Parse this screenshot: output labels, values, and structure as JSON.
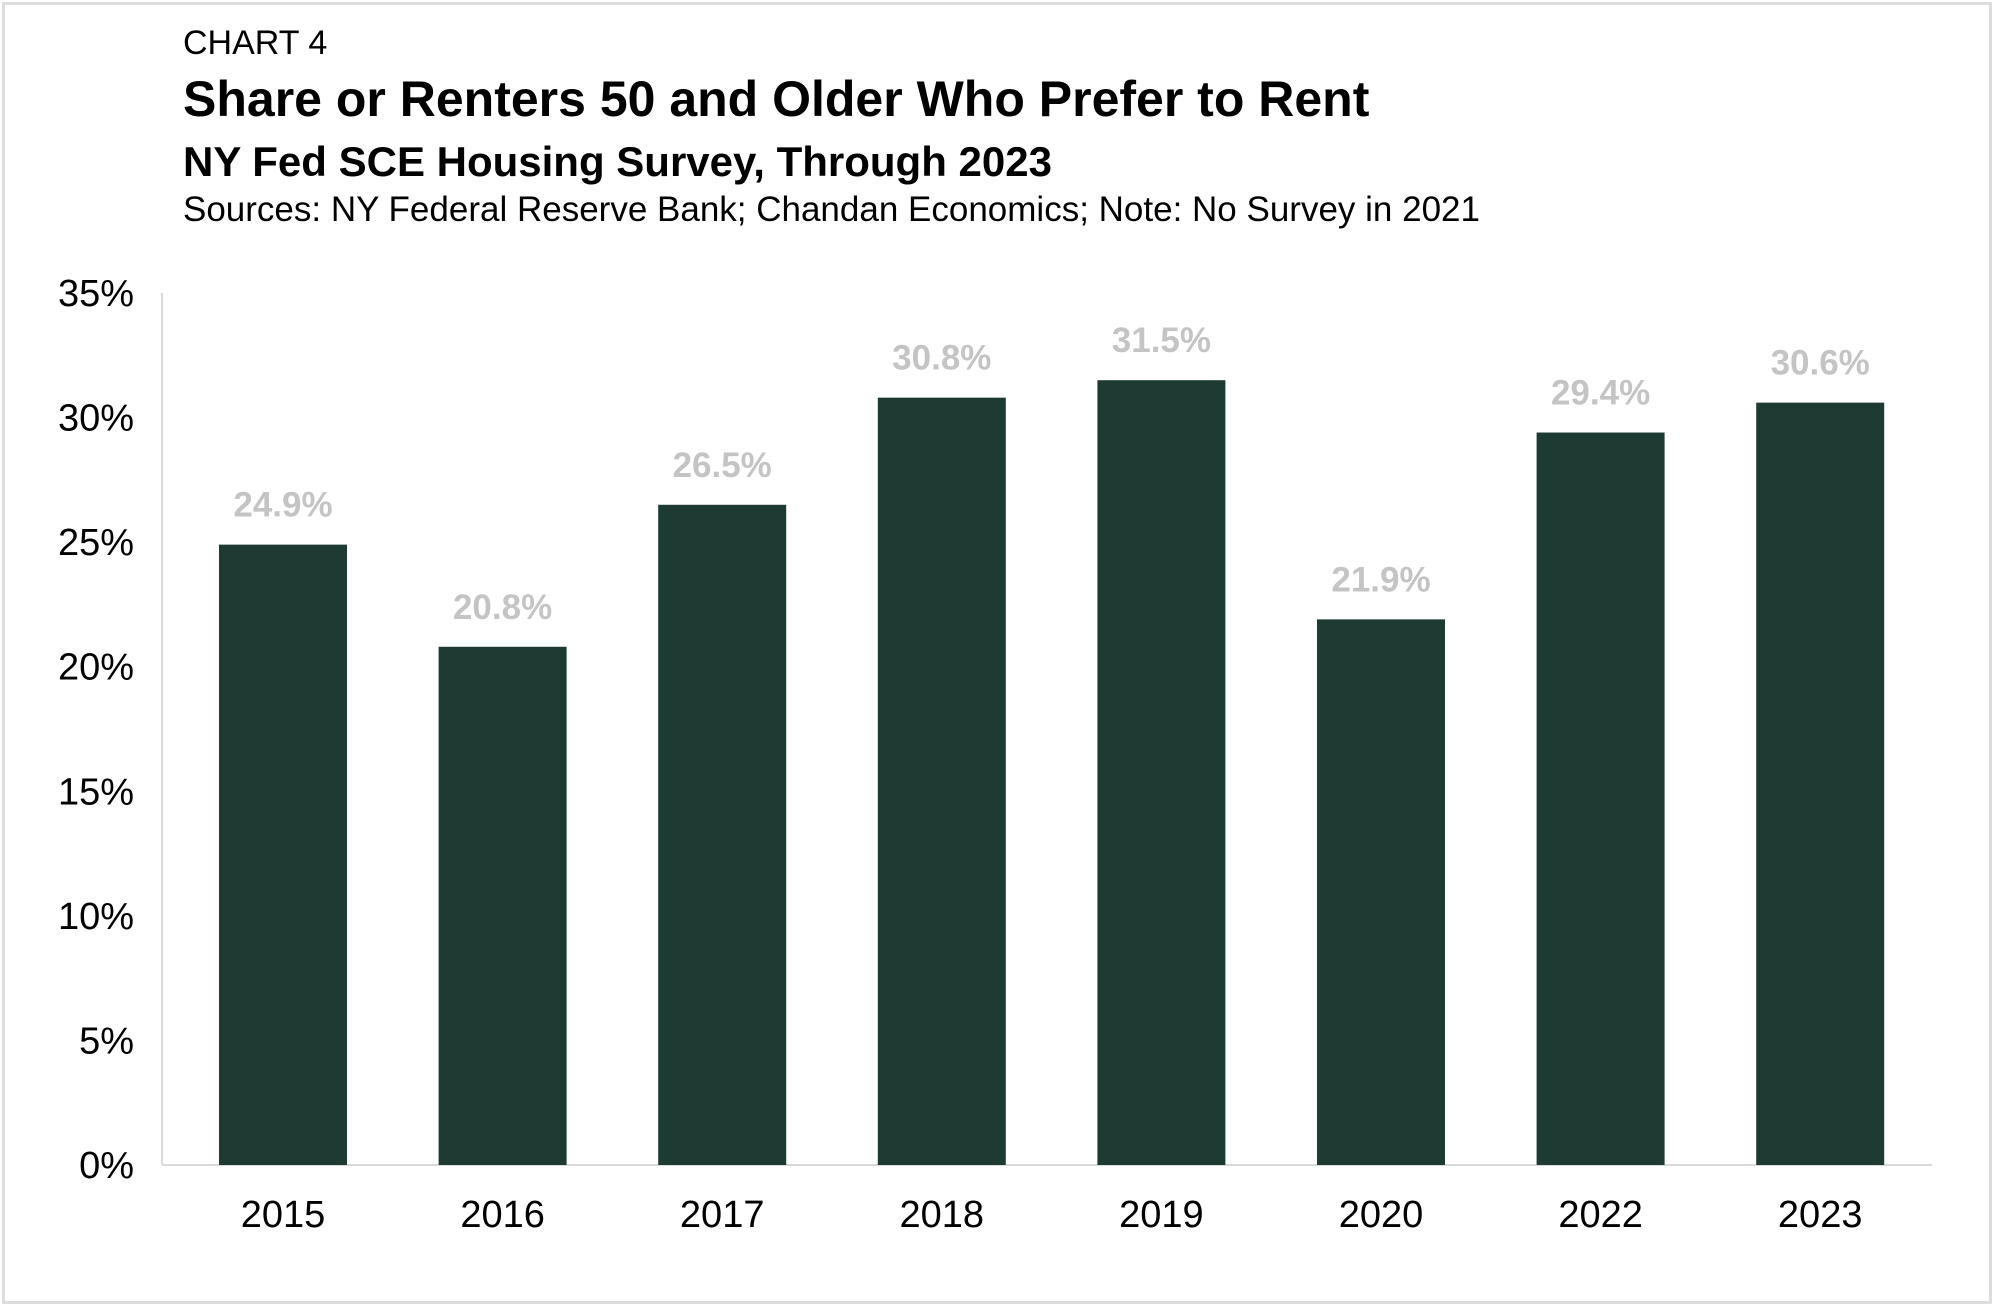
{
  "chart_data": {
    "type": "bar",
    "label": "CHART 4",
    "title": "Share or Renters 50 and Older Who Prefer to Rent",
    "subtitle": "NY Fed SCE Housing Survey, Through 2023",
    "sources": "Sources: NY Federal Reserve Bank; Chandan Economics; Note: No Survey in 2021",
    "categories": [
      "2015",
      "2016",
      "2017",
      "2018",
      "2019",
      "2020",
      "2022",
      "2023"
    ],
    "values": [
      24.9,
      20.8,
      26.5,
      30.8,
      31.5,
      21.9,
      29.4,
      30.6
    ],
    "data_labels": [
      "24.9%",
      "20.8%",
      "26.5%",
      "30.8%",
      "31.5%",
      "21.9%",
      "29.4%",
      "30.6%"
    ],
    "yticks": [
      "0%",
      "5%",
      "10%",
      "15%",
      "20%",
      "25%",
      "30%",
      "35%"
    ],
    "ylim": [
      0,
      35
    ],
    "xlabel": "",
    "ylabel": "",
    "grid": false,
    "bar_color": "#1e3b33",
    "data_label_color": "#c4c4c4"
  }
}
